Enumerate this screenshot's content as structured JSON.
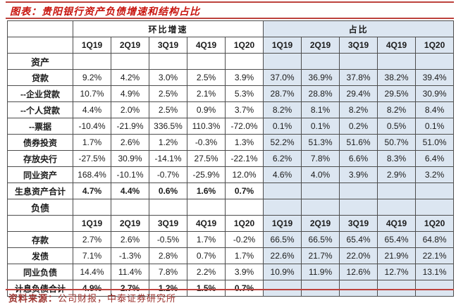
{
  "title": {
    "prefix": "图表：",
    "text": "贵阳银行资产负债增速和结构占比"
  },
  "source": {
    "prefix": "资料来源：",
    "text": "公司财报，中泰证券研究所"
  },
  "colors": {
    "accent_red": "#bd423d",
    "title_red": "#c8140e",
    "share_block_blue": "#dce6f1",
    "grid_border": "#4d4d4d",
    "source_red": "#9c332e"
  },
  "chart_data": {
    "type": "table",
    "title": "贵阳银行资产负债增速和结构占比",
    "group_headers": [
      {
        "label": "环比增速"
      },
      {
        "label": "占比"
      }
    ],
    "quarters": [
      "1Q19",
      "2Q19",
      "3Q19",
      "4Q19",
      "1Q20"
    ],
    "rows": [
      {
        "type": "section",
        "label": "资产",
        "growth": [
          "",
          "",
          "",
          "",
          ""
        ],
        "share": [
          "",
          "",
          "",
          "",
          ""
        ]
      },
      {
        "type": "data",
        "label": "贷款",
        "growth": [
          "9.2%",
          "4.2%",
          "3.0%",
          "2.5%",
          "3.9%"
        ],
        "share": [
          "37.0%",
          "36.9%",
          "37.8%",
          "38.2%",
          "39.4%"
        ]
      },
      {
        "type": "data",
        "label": "--企业贷款",
        "growth": [
          "10.7%",
          "4.9%",
          "2.5%",
          "2.1%",
          "5.3%"
        ],
        "share": [
          "28.7%",
          "28.8%",
          "29.4%",
          "29.5%",
          "30.9%"
        ]
      },
      {
        "type": "data",
        "label": "--个人贷款",
        "growth": [
          "4.4%",
          "2.0%",
          "2.5%",
          "0.9%",
          "3.7%"
        ],
        "share": [
          "8.2%",
          "8.1%",
          "8.2%",
          "8.2%",
          "8.4%"
        ]
      },
      {
        "type": "data",
        "label": "--票据",
        "growth": [
          "-10.4%",
          "-21.9%",
          "336.5%",
          "110.3%",
          "-72.0%"
        ],
        "share": [
          "0.1%",
          "0.1%",
          "0.2%",
          "0.5%",
          "0.1%"
        ]
      },
      {
        "type": "data",
        "label": "债券投资",
        "growth": [
          "1.7%",
          "2.6%",
          "1.2%",
          "-0.3%",
          "1.3%"
        ],
        "share": [
          "52.2%",
          "51.3%",
          "51.6%",
          "50.7%",
          "51.0%"
        ]
      },
      {
        "type": "data",
        "label": "存放央行",
        "growth": [
          "-27.5%",
          "30.9%",
          "-14.1%",
          "27.5%",
          "-22.1%"
        ],
        "share": [
          "6.2%",
          "7.8%",
          "6.6%",
          "8.3%",
          "6.4%"
        ]
      },
      {
        "type": "data",
        "label": "同业资产",
        "growth": [
          "168.4%",
          "-10.1%",
          "-0.7%",
          "-25.9%",
          "12.0%"
        ],
        "share": [
          "4.6%",
          "4.0%",
          "3.9%",
          "2.9%",
          "3.2%"
        ]
      },
      {
        "type": "total",
        "label": "生息资产合计",
        "growth": [
          "4.7%",
          "4.4%",
          "0.6%",
          "1.6%",
          "0.7%"
        ],
        "share": [
          "",
          "",
          "",
          "",
          ""
        ]
      },
      {
        "type": "section",
        "label": "负债",
        "growth": [
          "",
          "",
          "",
          "",
          ""
        ],
        "share": [
          "",
          "",
          "",
          "",
          ""
        ]
      },
      {
        "type": "quarters",
        "label": "",
        "growth": [],
        "share": []
      },
      {
        "type": "data",
        "label": "存款",
        "growth": [
          "2.7%",
          "2.6%",
          "-0.5%",
          "1.7%",
          "-0.2%"
        ],
        "share": [
          "66.5%",
          "66.5%",
          "65.4%",
          "65.4%",
          "64.8%"
        ]
      },
      {
        "type": "data",
        "label": "发债",
        "growth": [
          "7.1%",
          "-1.3%",
          "2.8%",
          "0.7%",
          "1.7%"
        ],
        "share": [
          "22.6%",
          "21.7%",
          "22.0%",
          "21.9%",
          "22.1%"
        ]
      },
      {
        "type": "data",
        "label": "同业负债",
        "growth": [
          "14.4%",
          "11.4%",
          "7.8%",
          "2.2%",
          "3.9%"
        ],
        "share": [
          "10.9%",
          "11.9%",
          "12.6%",
          "12.7%",
          "13.1%"
        ]
      },
      {
        "type": "total",
        "label": "计息负债合计",
        "growth": [
          "4.9%",
          "2.7%",
          "1.2%",
          "1.5%",
          "0.7%"
        ],
        "share": [
          "",
          "",
          "",
          "",
          ""
        ]
      }
    ]
  }
}
